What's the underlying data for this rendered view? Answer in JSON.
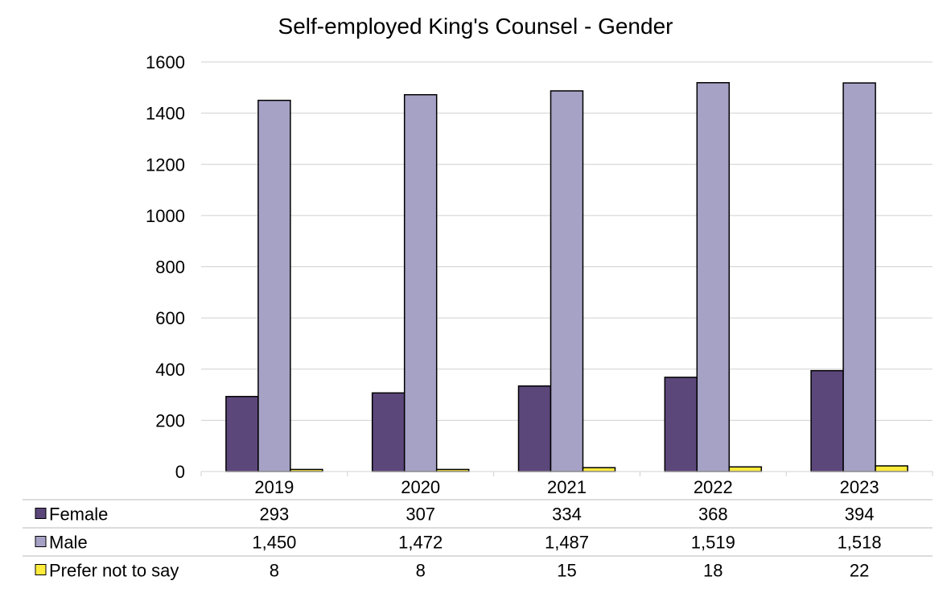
{
  "chart_data": {
    "type": "bar",
    "title": "Self-employed King's Counsel - Gender",
    "categories": [
      "2019",
      "2020",
      "2021",
      "2022",
      "2023"
    ],
    "series": [
      {
        "name": "Female",
        "color": "#5c477b",
        "values": [
          293,
          307,
          334,
          368,
          394
        ],
        "labels": [
          "293",
          "307",
          "334",
          "368",
          "394"
        ]
      },
      {
        "name": "Male",
        "color": "#a6a2c6",
        "values": [
          1450,
          1472,
          1487,
          1519,
          1518
        ],
        "labels": [
          "1,450",
          "1,472",
          "1,487",
          "1,519",
          "1,518"
        ]
      },
      {
        "name": "Prefer not to say",
        "color": "#ffeb3b",
        "values": [
          8,
          8,
          15,
          18,
          22
        ],
        "labels": [
          "8",
          "8",
          "15",
          "18",
          "22"
        ]
      }
    ],
    "ylim": [
      0,
      1600
    ],
    "yticks": [
      "0",
      "200",
      "400",
      "600",
      "800",
      "1000",
      "1200",
      "1400",
      "1600"
    ],
    "grid": true,
    "legend": "data-table"
  }
}
